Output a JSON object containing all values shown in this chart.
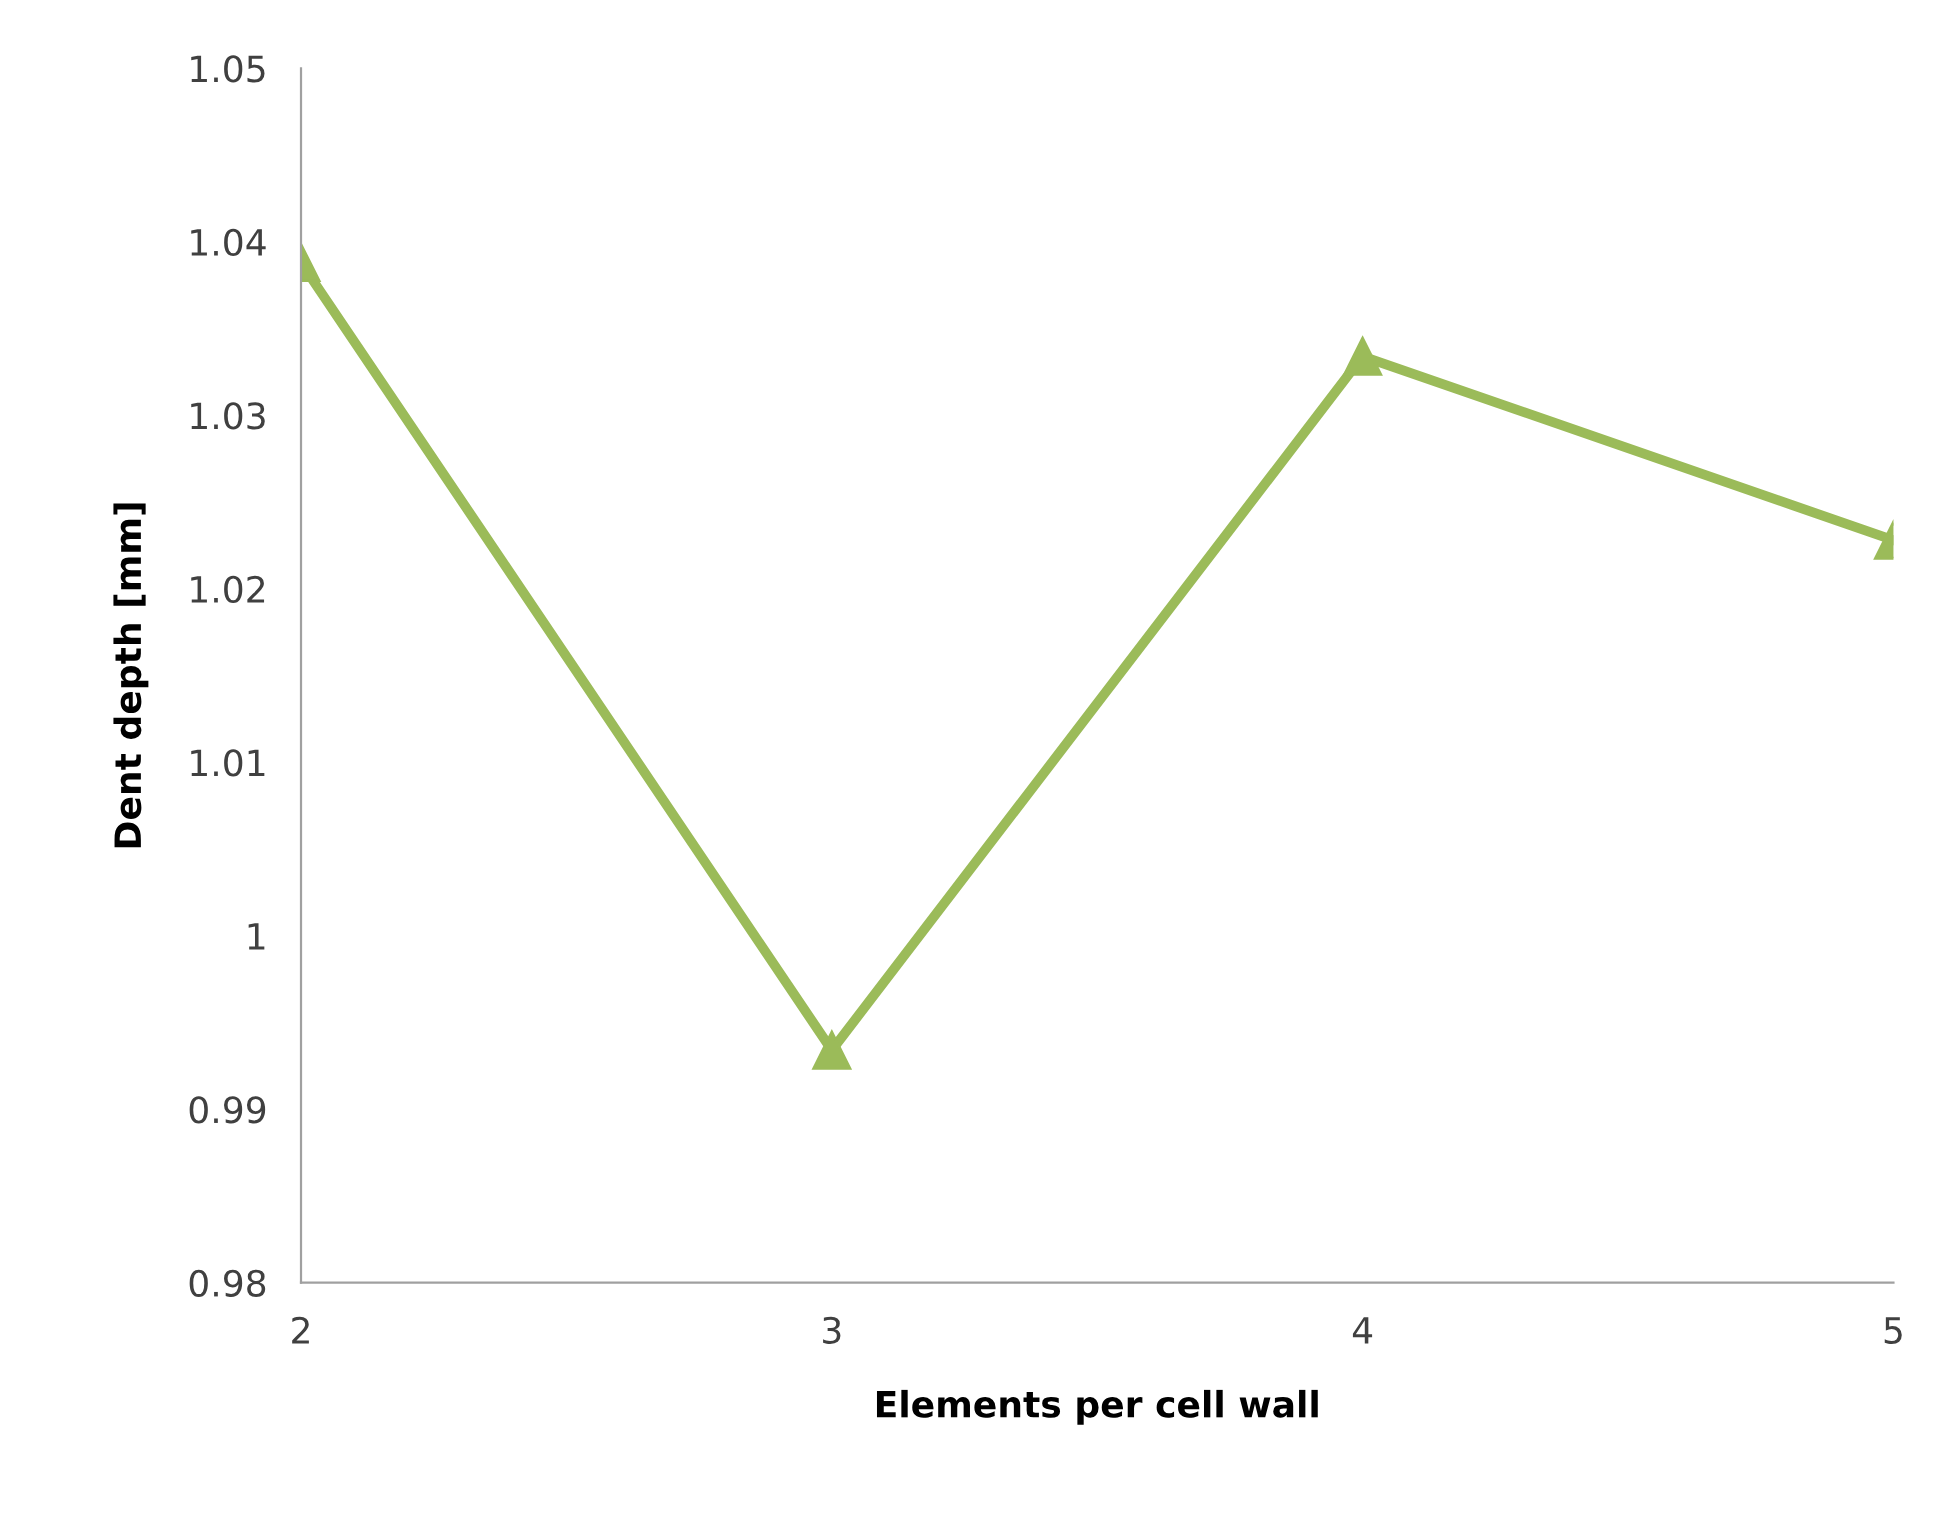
{
  "chart_data": {
    "type": "line",
    "xlabel": "Elements per cell wall",
    "ylabel": "Dent depth [mm]",
    "x": [
      2,
      3,
      4,
      5
    ],
    "series": [
      {
        "color": "#9bbb59",
        "values": [
          1.0388,
          0.9934,
          1.0334,
          1.0228
        ]
      }
    ],
    "xlim": [
      2,
      5
    ],
    "xticks": [
      2,
      3,
      4,
      5
    ],
    "ylim": [
      0.98,
      1.05
    ],
    "yticks": [
      0.98,
      0.99,
      1,
      1.01,
      1.02,
      1.03,
      1.04,
      1.05
    ],
    "marker": "triangle",
    "line_style": "solid",
    "grid": false,
    "legend": false
  }
}
